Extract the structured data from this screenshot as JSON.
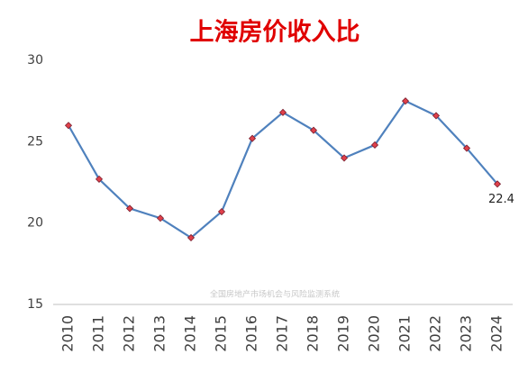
{
  "chart_data": {
    "type": "line",
    "title": "上海房价收入比",
    "categories": [
      "2010",
      "2011",
      "2012",
      "2013",
      "2014",
      "2015",
      "2016",
      "2017",
      "2018",
      "2019",
      "2020",
      "2021",
      "2022",
      "2023",
      "2024"
    ],
    "values": [
      26.0,
      22.7,
      20.9,
      20.3,
      19.1,
      20.7,
      25.2,
      26.8,
      25.7,
      24.0,
      24.8,
      27.5,
      26.6,
      24.6,
      22.4
    ],
    "color": "#4f81bd",
    "marker_color": "#e0404a",
    "ylim": [
      15,
      30
    ],
    "yticks": [
      15,
      20,
      25,
      30
    ],
    "grid": false,
    "annotation": "全国房地产市场机会与风险监测系统"
  }
}
